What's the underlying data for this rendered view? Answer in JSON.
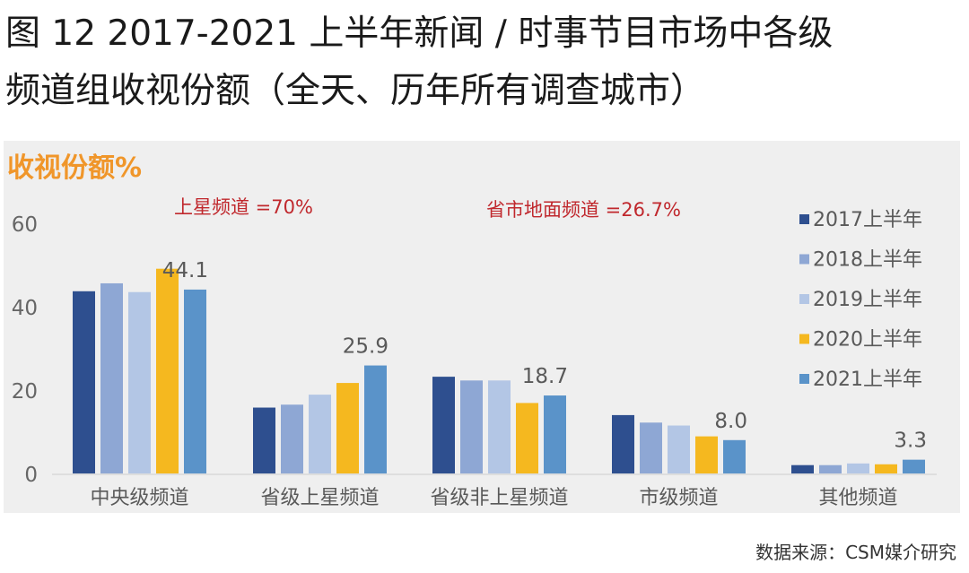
{
  "title_line1": "图 12 2017-2021 上半年新闻 / 时事节目市场中各级",
  "title_line2": "频道组收视份额（全天、历年所有调查城市）",
  "source": "数据来源：CSM媒介研究",
  "chart_data": {
    "type": "bar",
    "ylabel": "收视份额%",
    "ylim": [
      0,
      60
    ],
    "yticks": [
      0,
      20,
      40,
      60
    ],
    "grid": false,
    "legend_position": "right",
    "categories": [
      "中央级频道",
      "省级上星频道",
      "省级非上星频道",
      "市级频道",
      "其他频道"
    ],
    "series": [
      {
        "name": "2017上半年",
        "color": "#2e4f8f",
        "values": [
          43.7,
          15.8,
          23.2,
          14.0,
          2.0
        ]
      },
      {
        "name": "2018上半年",
        "color": "#8ea7d4",
        "values": [
          45.6,
          16.5,
          22.3,
          12.2,
          2.0
        ]
      },
      {
        "name": "2019上半年",
        "color": "#b3c6e5",
        "values": [
          43.5,
          18.9,
          22.3,
          11.5,
          2.4
        ]
      },
      {
        "name": "2020上半年",
        "color": "#f5b81f",
        "values": [
          49.1,
          21.7,
          16.9,
          8.9,
          2.2
        ]
      },
      {
        "name": "2021上半年",
        "color": "#5a93c9",
        "values": [
          44.1,
          25.9,
          18.7,
          8.0,
          3.3
        ]
      }
    ],
    "data_labels": [
      "44.1",
      "25.9",
      "18.7",
      "8.0",
      "3.3"
    ],
    "annotations": [
      {
        "text": "上星频道 =70%",
        "color": "#c0282d"
      },
      {
        "text": "省市地面频道 =26.7%",
        "color": "#c0282d"
      }
    ],
    "ylabel_color": "#f0962a"
  }
}
